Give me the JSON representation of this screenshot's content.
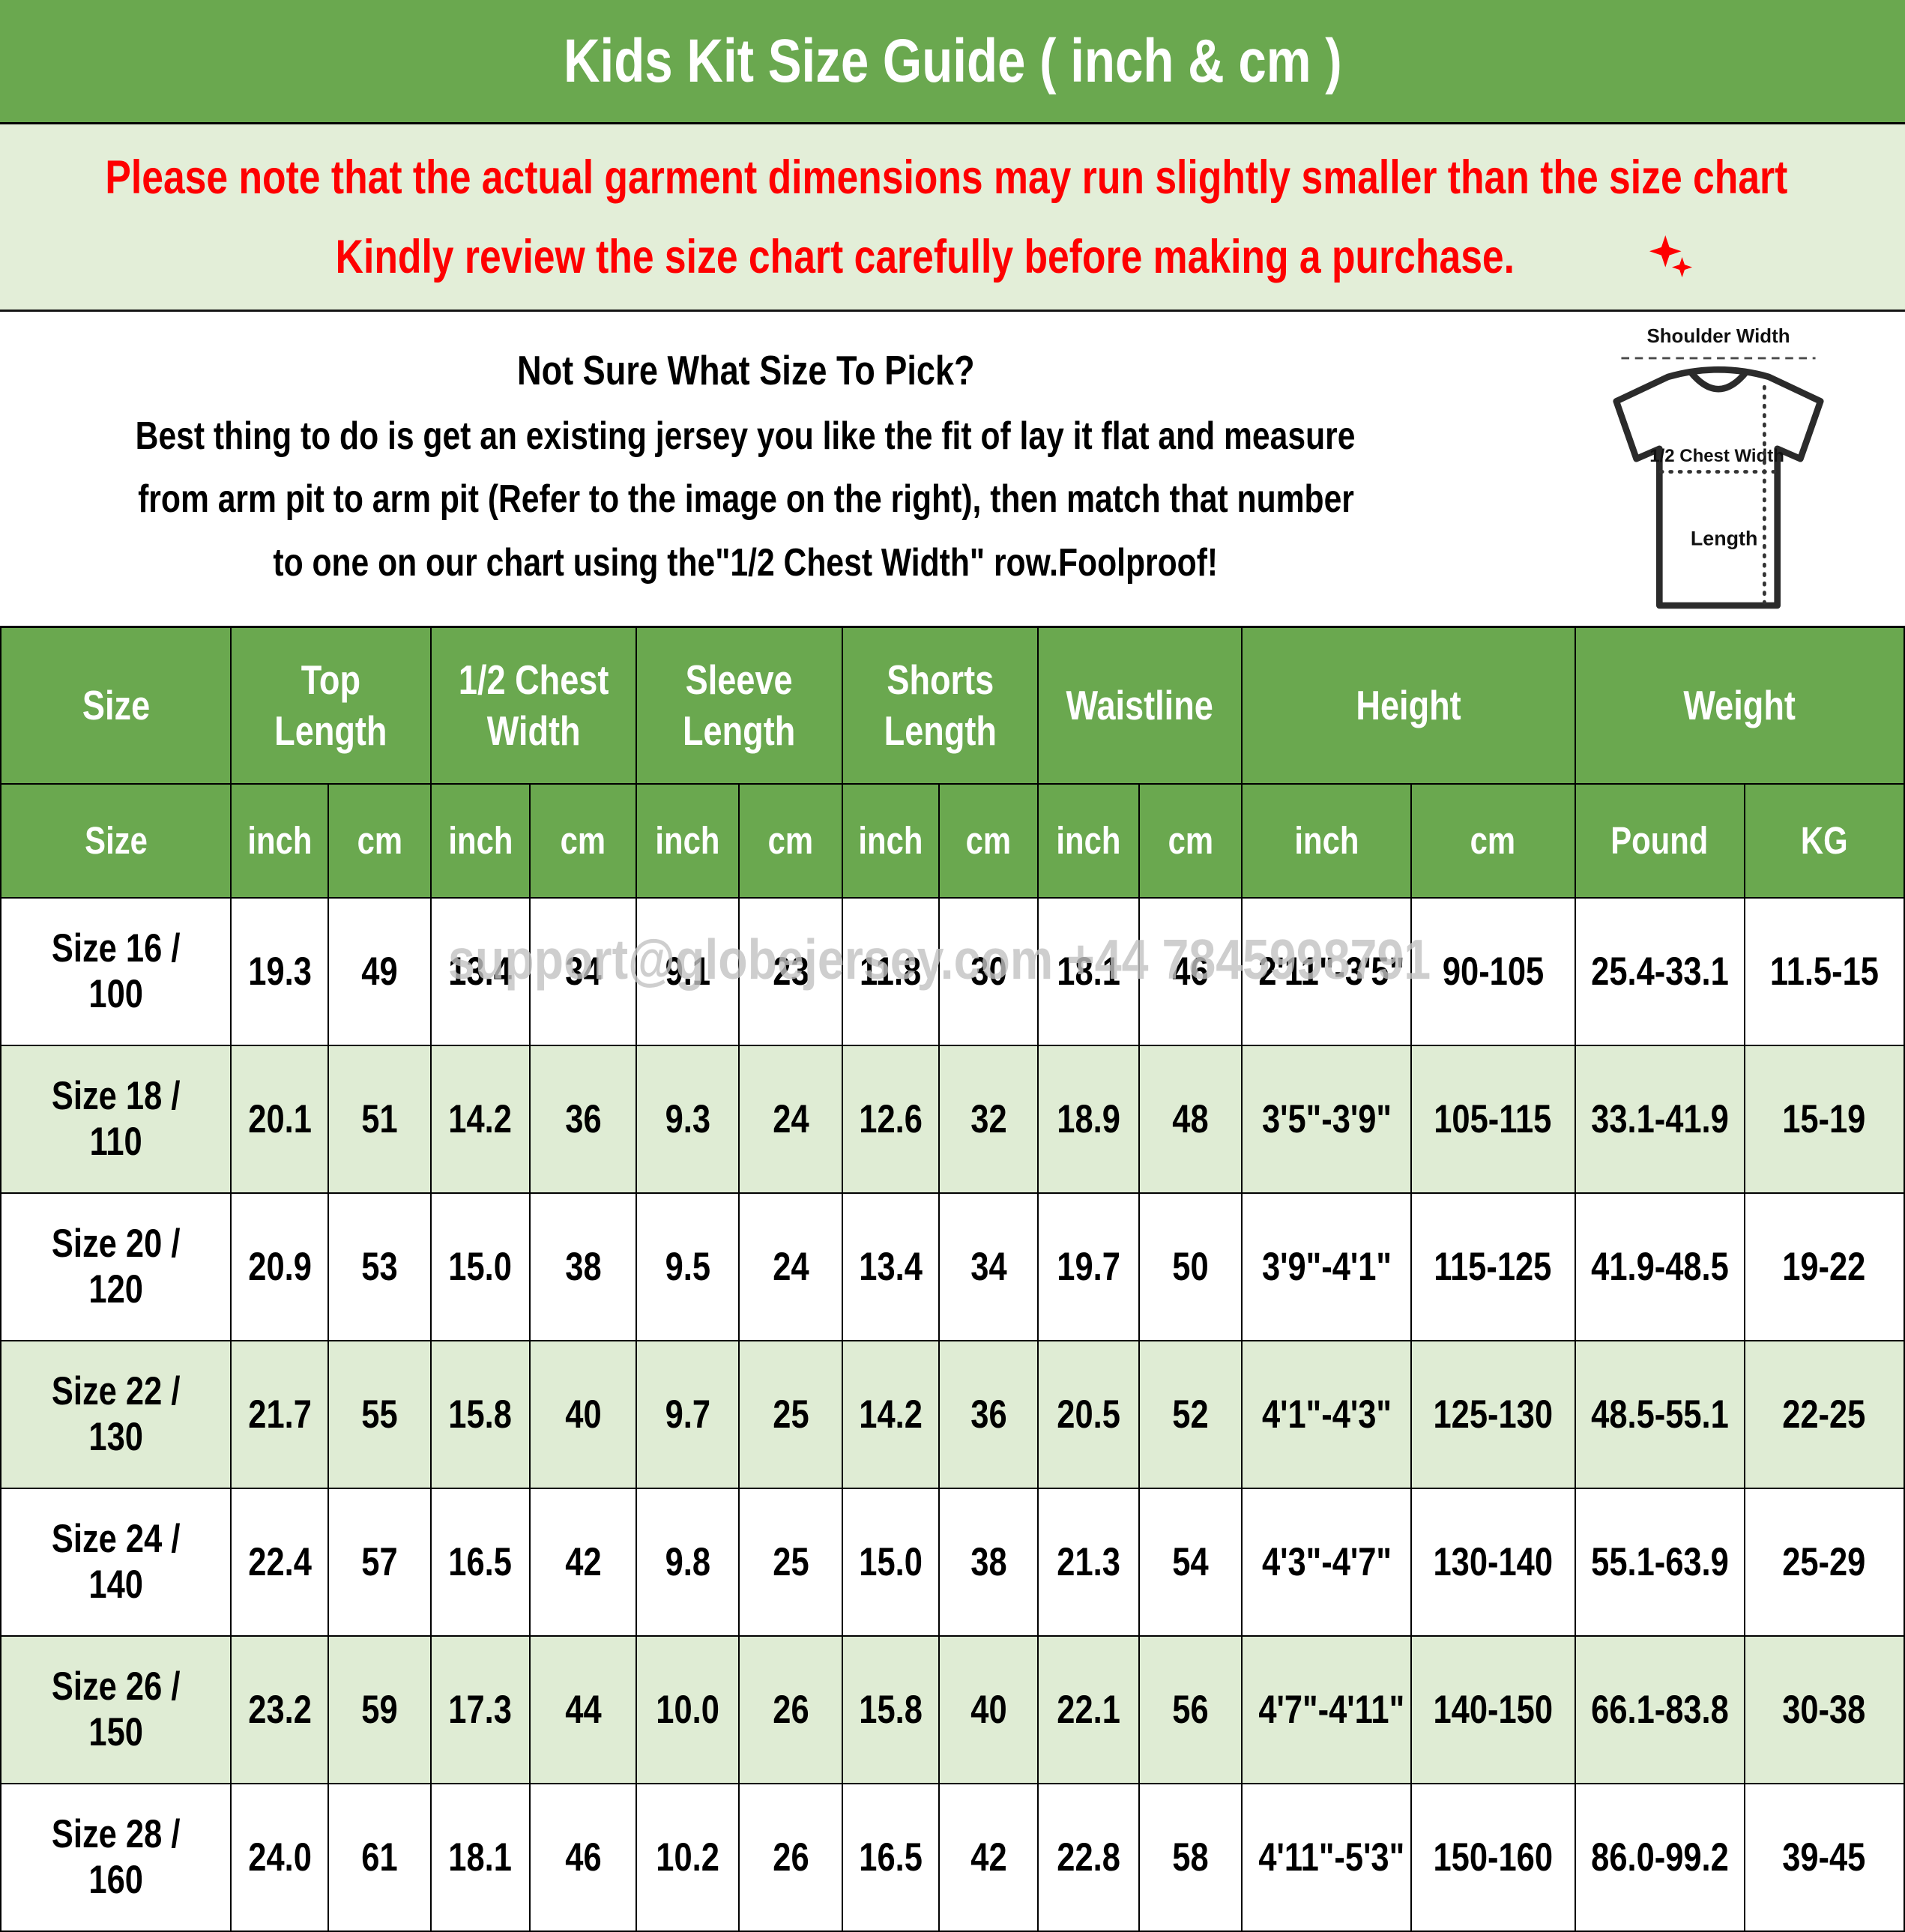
{
  "header": {
    "title": "Kids Kit Size Guide ( inch & cm )"
  },
  "notice": {
    "line1": "Please note that the actual garment dimensions may run slightly smaller than the size chart",
    "line1_end": ".",
    "line2": "Kindly review the size chart carefully before making a purchase."
  },
  "guide": {
    "heading": "Not Sure What Size To Pick?",
    "line1": "Best thing to do is get an existing jersey you like the fit of lay it flat and measure",
    "line2": "from arm pit to arm pit (Refer to the image on the right), then match that number",
    "line3": "to one on our chart using the\"1/2 Chest Width\" row.Foolproof!"
  },
  "diagram": {
    "shoulder_label": "Shoulder Width",
    "chest_label": "1/2 Chest Width",
    "length_label": "Length"
  },
  "watermark": "support@globejersey.com +44 7845998791",
  "table": {
    "groups": [
      {
        "label": "Size",
        "span": 1
      },
      {
        "label": "Top Length",
        "span": 2
      },
      {
        "label": "1/2 Chest Width",
        "span": 2
      },
      {
        "label": "Sleeve Length",
        "span": 2
      },
      {
        "label": "Shorts Length",
        "span": 2
      },
      {
        "label": "Waistline",
        "span": 2
      },
      {
        "label": "Height",
        "span": 2
      },
      {
        "label": "Weight",
        "span": 2
      }
    ],
    "subheaders": [
      "Size",
      "inch",
      "cm",
      "inch",
      "cm",
      "inch",
      "cm",
      "inch",
      "cm",
      "inch",
      "cm",
      "inch",
      "cm",
      "Pound",
      "KG"
    ],
    "rows": [
      [
        "Size 16 / 100",
        "19.3",
        "49",
        "13.4",
        "34",
        "9.1",
        "23",
        "11.8",
        "30",
        "18.1",
        "46",
        "2'11\"-3'5\"",
        "90-105",
        "25.4-33.1",
        "11.5-15"
      ],
      [
        "Size 18 / 110",
        "20.1",
        "51",
        "14.2",
        "36",
        "9.3",
        "24",
        "12.6",
        "32",
        "18.9",
        "48",
        "3'5\"-3'9\"",
        "105-115",
        "33.1-41.9",
        "15-19"
      ],
      [
        "Size 20 / 120",
        "20.9",
        "53",
        "15.0",
        "38",
        "9.5",
        "24",
        "13.4",
        "34",
        "19.7",
        "50",
        "3'9\"-4'1\"",
        "115-125",
        "41.9-48.5",
        "19-22"
      ],
      [
        "Size 22 / 130",
        "21.7",
        "55",
        "15.8",
        "40",
        "9.7",
        "25",
        "14.2",
        "36",
        "20.5",
        "52",
        "4'1\"-4'3\"",
        "125-130",
        "48.5-55.1",
        "22-25"
      ],
      [
        "Size 24 / 140",
        "22.4",
        "57",
        "16.5",
        "42",
        "9.8",
        "25",
        "15.0",
        "38",
        "21.3",
        "54",
        "4'3\"-4'7\"",
        "130-140",
        "55.1-63.9",
        "25-29"
      ],
      [
        "Size 26 / 150",
        "23.2",
        "59",
        "17.3",
        "44",
        "10.0",
        "26",
        "15.8",
        "40",
        "22.1",
        "56",
        "4'7\"-4'11\"",
        "140-150",
        "66.1-83.8",
        "30-38"
      ],
      [
        "Size 28 / 160",
        "24.0",
        "61",
        "18.1",
        "46",
        "10.2",
        "26",
        "16.5",
        "42",
        "22.8",
        "58",
        "4'11\"-5'3\"",
        "150-160",
        "86.0-99.2",
        "39-45"
      ]
    ]
  },
  "colors": {
    "header_green": "#6aa84f",
    "notice_bg": "#e3eed8",
    "alt_row_bg": "#dfecd4",
    "notice_red": "#fe0000",
    "watermark_gray": "#c2c2c2"
  }
}
